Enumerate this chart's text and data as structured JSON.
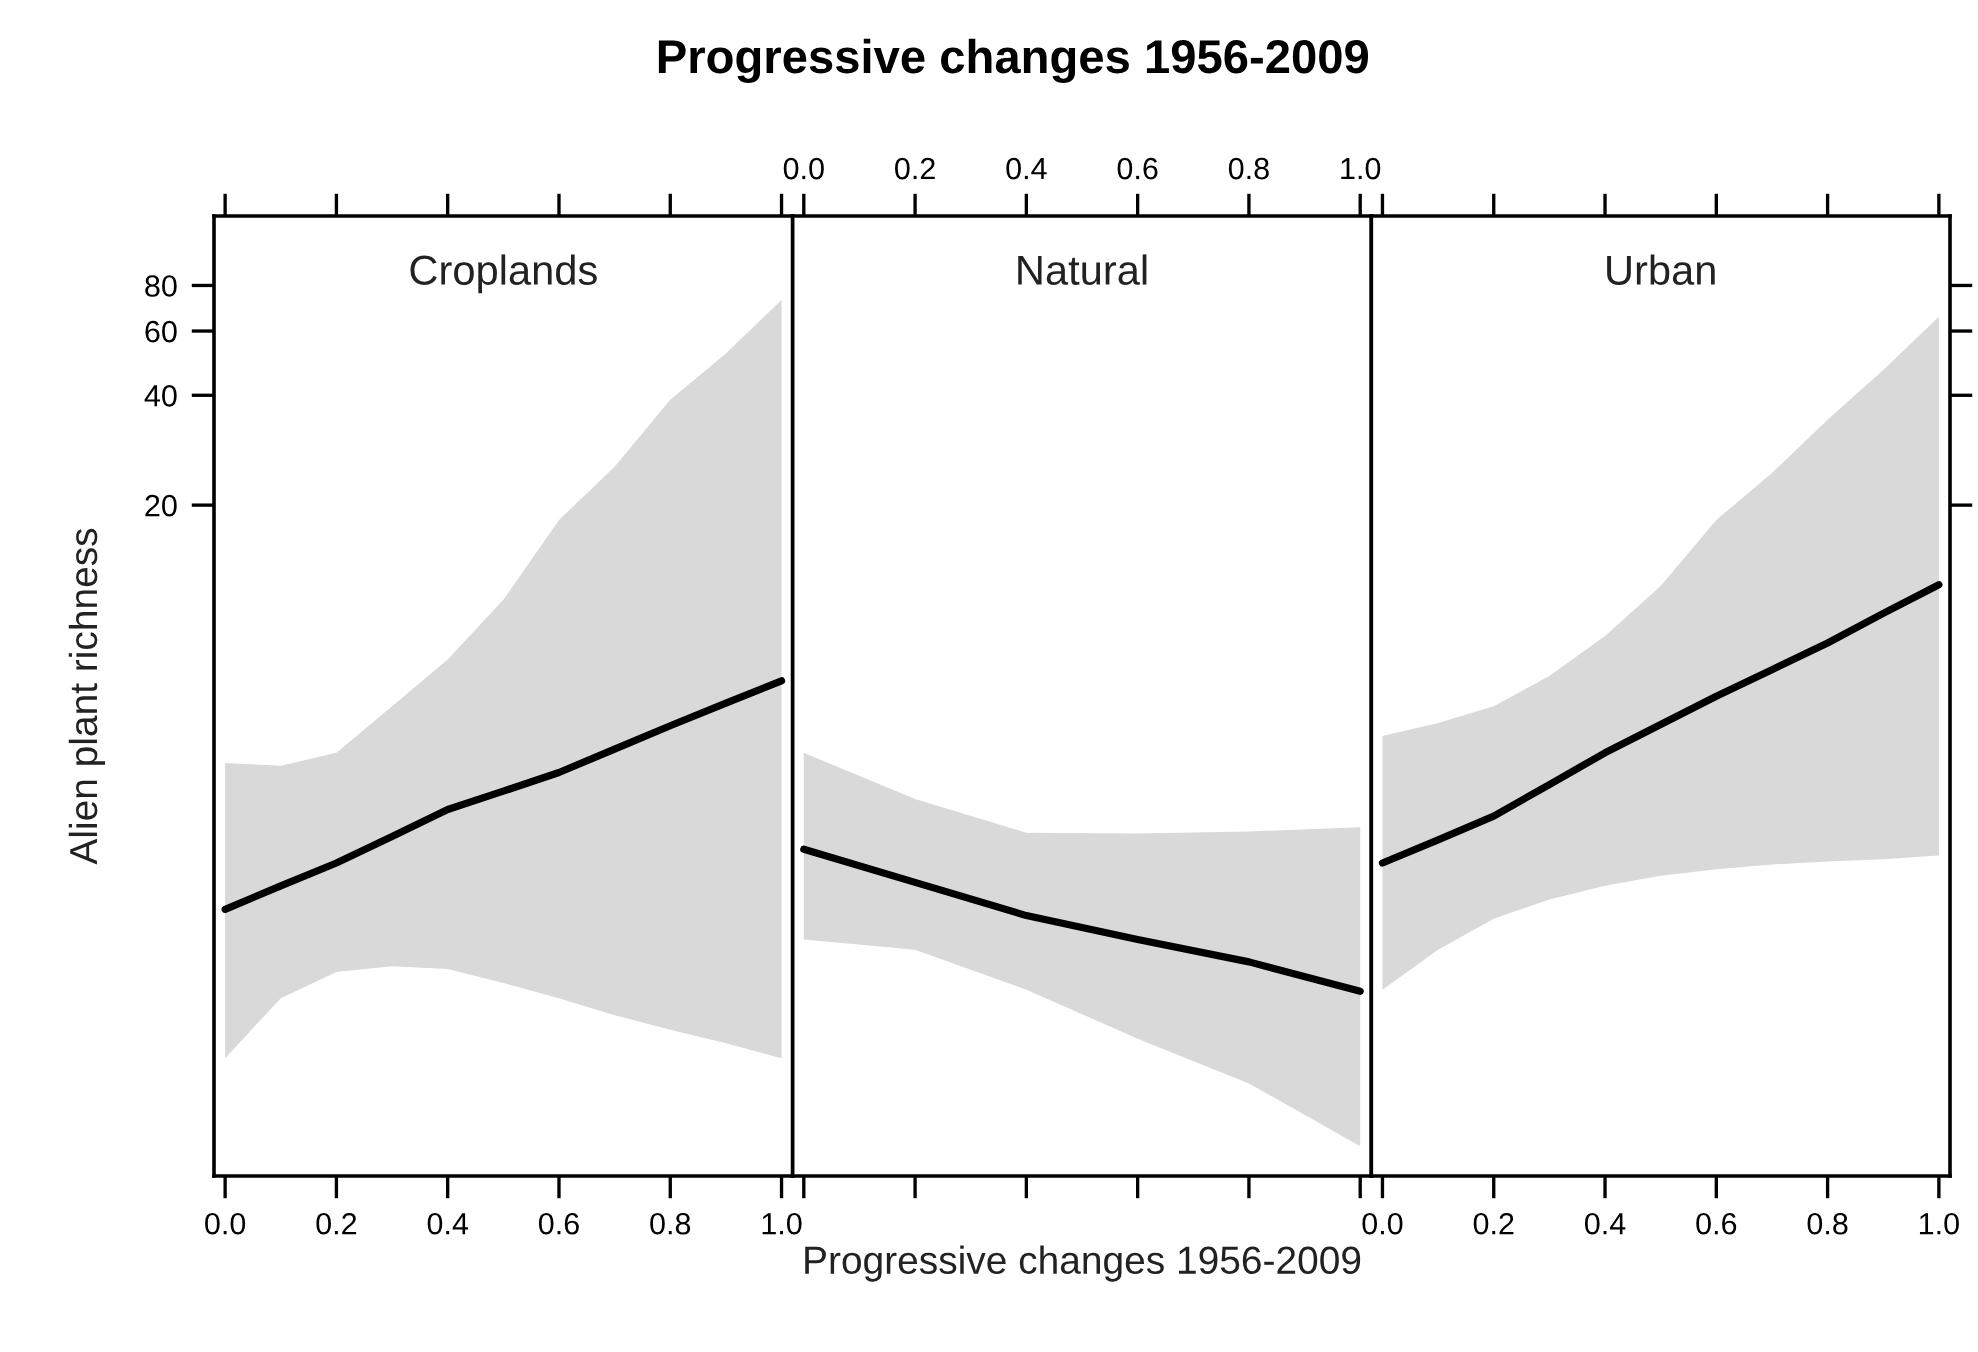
{
  "chart_data": [
    {
      "type": "line",
      "title": "Progressive changes 1956-2009",
      "subtitle": "Croplands",
      "ylabel": "Alien plant richness",
      "log": true,
      "xlim": [
        -0.02,
        1.02
      ],
      "ylim": [
        0.29,
        124
      ],
      "xticks": [
        {
          "value": 0,
          "label": "0.0"
        },
        {
          "value": 0.2,
          "label": "0.2"
        },
        {
          "value": 0.4,
          "label": "0.4"
        },
        {
          "value": 0.6,
          "label": "0.6"
        },
        {
          "value": 0.8,
          "label": "0.8"
        },
        {
          "value": 1,
          "label": "1.0"
        }
      ],
      "yticks": [
        20,
        40,
        60,
        80
      ],
      "series": [
        {
          "color": "#000000",
          "x": [
            0,
            0.1,
            0.2,
            0.3,
            0.4,
            0.5,
            0.6,
            0.7,
            0.8,
            0.9,
            1
          ],
          "values": [
            1.56,
            1.81,
            2.09,
            2.47,
            2.93,
            3.29,
            3.7,
            4.29,
            4.97,
            5.73,
            6.6
          ],
          "lower": [
            0.61,
            0.89,
            1.05,
            1.09,
            1.07,
            0.98,
            0.89,
            0.8,
            0.73,
            0.67,
            0.61
          ],
          "upper": [
            3.93,
            3.86,
            4.19,
            5.62,
            7.55,
            11.0,
            18.2,
            25.5,
            38.9,
            52.1,
            73.0
          ]
        }
      ]
    },
    {
      "type": "line",
      "subtitle": "Natural",
      "xlabel": "Progressive changes 1956-2009",
      "log": true,
      "xlim": [
        -0.02,
        1.02
      ],
      "ylim": [
        0.29,
        124
      ],
      "x2lim": [
        -0.02,
        1.02
      ],
      "x2ticks": [
        {
          "value": 0,
          "label": "0.0"
        },
        {
          "value": 0.2,
          "label": "0.2"
        },
        {
          "value": 0.4,
          "label": "0.4"
        },
        {
          "value": 0.6,
          "label": "0.6"
        },
        {
          "value": 0.8,
          "label": "0.8"
        },
        {
          "value": 1,
          "label": "1.0"
        }
      ],
      "series": [
        {
          "color": "#000000",
          "x": [
            0,
            0.2,
            0.4,
            0.6,
            0.8,
            1
          ],
          "values": [
            2.28,
            1.85,
            1.5,
            1.29,
            1.12,
            0.93
          ],
          "lower": [
            1.29,
            1.21,
            0.94,
            0.69,
            0.52,
            0.35
          ],
          "upper": [
            4.19,
            3.13,
            2.53,
            2.52,
            2.55,
            2.62
          ]
        }
      ]
    },
    {
      "type": "line",
      "subtitle": "Urban",
      "log": true,
      "tick_labels": "x",
      "xlim": [
        -0.02,
        1.02
      ],
      "ylim": [
        0.29,
        124
      ],
      "xticks": [
        {
          "value": 0,
          "label": "0.0"
        },
        {
          "value": 0.2,
          "label": "0.2"
        },
        {
          "value": 0.4,
          "label": "0.4"
        },
        {
          "value": 0.6,
          "label": "0.6"
        },
        {
          "value": 0.8,
          "label": "0.8"
        },
        {
          "value": 1,
          "label": "1.0"
        }
      ],
      "yticks": [
        20,
        40,
        60,
        80
      ],
      "series": [
        {
          "color": "#000000",
          "x": [
            0,
            0.1,
            0.2,
            0.3,
            0.4,
            0.5,
            0.6,
            0.7,
            0.8,
            0.9,
            1
          ],
          "values": [
            2.09,
            2.42,
            2.81,
            3.43,
            4.19,
            5.01,
            5.99,
            7.08,
            8.38,
            10.1,
            12.1
          ],
          "lower": [
            0.94,
            1.21,
            1.47,
            1.66,
            1.81,
            1.93,
            2.01,
            2.07,
            2.11,
            2.14,
            2.19
          ],
          "upper": [
            4.66,
            5.06,
            5.62,
            6.8,
            8.75,
            12.0,
            18.2,
            24.5,
            34.3,
            46.9,
            65.7
          ]
        }
      ]
    }
  ]
}
